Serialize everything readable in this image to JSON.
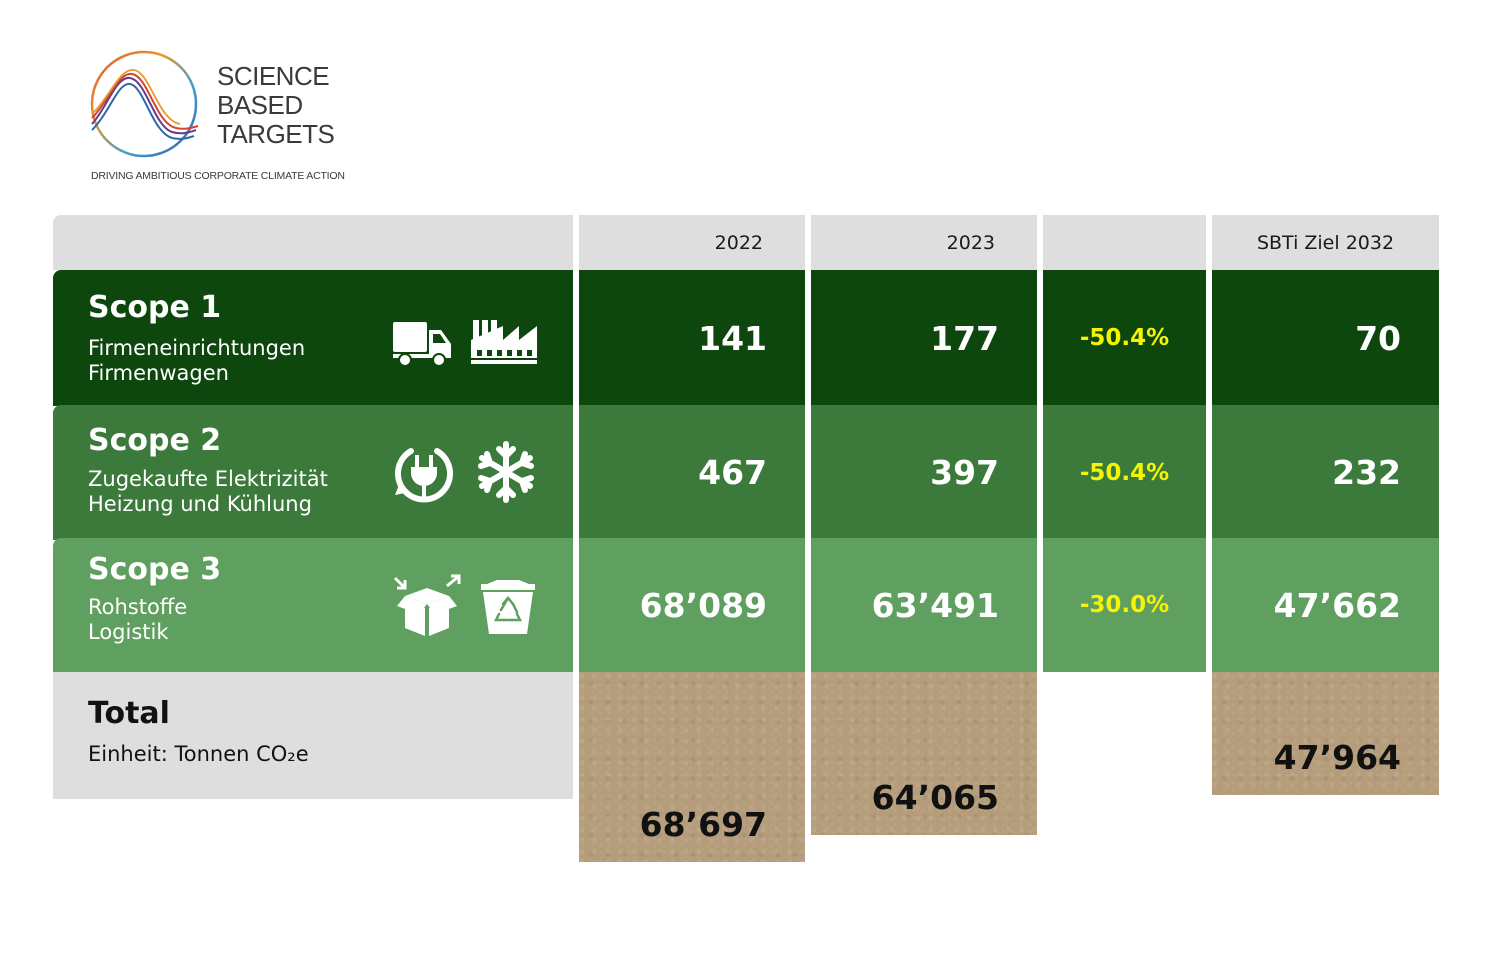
{
  "logo": {
    "lines": [
      "SCIENCE",
      "BASED",
      "TARGETS"
    ],
    "tagline": "DRIVING AMBITIOUS CORPORATE CLIMATE ACTION"
  },
  "chart_data": {
    "type": "table",
    "columns": [
      "2022",
      "2023",
      "",
      "SBTi Ziel 2032"
    ],
    "rows": [
      {
        "title": "Scope 1",
        "sub1": "Firmeneinrichtungen",
        "sub2": "Firmenwagen",
        "icons": [
          "truck-icon",
          "factory-icon"
        ],
        "v2022": "141",
        "v2023": "177",
        "change": "-50.4%",
        "target": "70"
      },
      {
        "title": "Scope 2",
        "sub1": "Zugekaufte Elektrizität",
        "sub2": "Heizung und Kühlung",
        "icons": [
          "power-plug-icon",
          "snowflake-icon"
        ],
        "v2022": "467",
        "v2023": "397",
        "change": "-50.4%",
        "target": "232"
      },
      {
        "title": "Scope 3",
        "sub1": "Rohstoffe",
        "sub2": "Logistik",
        "icons": [
          "package-icon",
          "recycle-bin-icon"
        ],
        "v2022": "68’089",
        "v2023": "63’491",
        "change": "-30.0%",
        "target": "47’662"
      }
    ],
    "total": {
      "title": "Total",
      "unit": "Einheit: Tonnen CO₂e",
      "v2022": "68’697",
      "v2023": "64’065",
      "target": "47’964"
    },
    "colors": {
      "scope1": "#0d470d",
      "scope2": "#3b7a3b",
      "scope3": "#5f9f5f",
      "change": "#f5f500",
      "header": "#dedede",
      "total": "#b59d7c"
    }
  }
}
